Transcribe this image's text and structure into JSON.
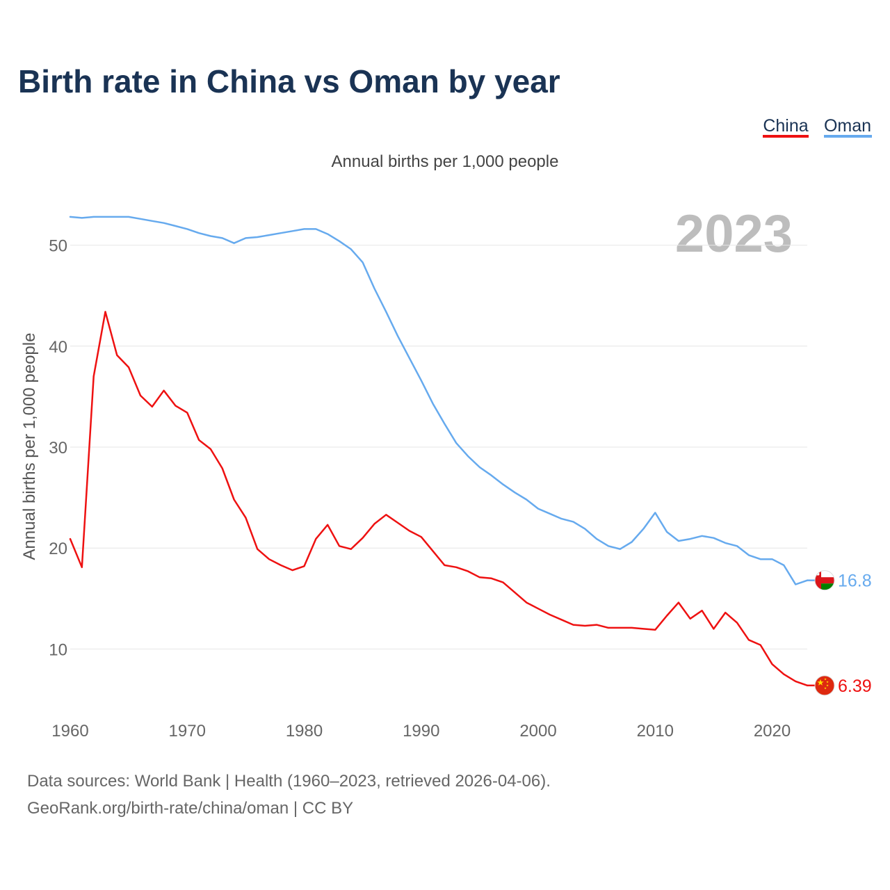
{
  "title": "Birth rate in China vs Oman by year",
  "subtitle": "Annual births per 1,000 people",
  "watermark_year": "2023",
  "footer": {
    "line1": "Data sources: World Bank | Health (1960–2023, retrieved 2026-04-06).",
    "line2": "GeoRank.org/birth-rate/china/oman | CC BY"
  },
  "legend": [
    {
      "name": "China",
      "color": "#ee1111"
    },
    {
      "name": "Oman",
      "color": "#66aaee"
    }
  ],
  "chart_data": {
    "type": "line",
    "title": "Birth rate in China vs Oman by year",
    "xlabel": "",
    "ylabel": "Annual births per 1,000 people",
    "xlim": [
      1960,
      2023
    ],
    "ylim": [
      5,
      55
    ],
    "yticks": [
      10,
      20,
      30,
      40,
      50
    ],
    "xticks": [
      1960,
      1970,
      1980,
      1990,
      2000,
      2010,
      2020
    ],
    "grid": true,
    "legend_position": "top-right",
    "x": [
      1960,
      1961,
      1962,
      1963,
      1964,
      1965,
      1966,
      1967,
      1968,
      1969,
      1970,
      1971,
      1972,
      1973,
      1974,
      1975,
      1976,
      1977,
      1978,
      1979,
      1980,
      1981,
      1982,
      1983,
      1984,
      1985,
      1986,
      1987,
      1988,
      1989,
      1990,
      1991,
      1992,
      1993,
      1994,
      1995,
      1996,
      1997,
      1998,
      1999,
      2000,
      2001,
      2002,
      2003,
      2004,
      2005,
      2006,
      2007,
      2008,
      2009,
      2010,
      2011,
      2012,
      2013,
      2014,
      2015,
      2016,
      2017,
      2018,
      2019,
      2020,
      2021,
      2022,
      2023
    ],
    "series": [
      {
        "name": "China",
        "color": "#ee1111",
        "end_label": "6.39",
        "flag": "china-flag-icon",
        "values": [
          20.9,
          18.1,
          37.0,
          43.4,
          39.1,
          37.9,
          35.1,
          34.0,
          35.6,
          34.1,
          33.4,
          30.7,
          29.8,
          27.9,
          24.8,
          23.0,
          19.9,
          18.9,
          18.3,
          17.8,
          18.2,
          20.9,
          22.3,
          20.2,
          19.9,
          21.0,
          22.4,
          23.3,
          22.5,
          21.7,
          21.1,
          19.7,
          18.3,
          18.1,
          17.7,
          17.1,
          17.0,
          16.6,
          15.6,
          14.6,
          14.0,
          13.4,
          12.9,
          12.4,
          12.3,
          12.4,
          12.1,
          12.1,
          12.1,
          12.0,
          11.9,
          13.3,
          14.6,
          13.0,
          13.8,
          12.0,
          13.6,
          12.6,
          10.9,
          10.4,
          8.5,
          7.5,
          6.8,
          6.39
        ]
      },
      {
        "name": "Oman",
        "color": "#66aaee",
        "end_label": "16.8",
        "flag": "oman-flag-icon",
        "values": [
          52.8,
          52.7,
          52.8,
          52.8,
          52.8,
          52.8,
          52.6,
          52.4,
          52.2,
          51.9,
          51.6,
          51.2,
          50.9,
          50.7,
          50.2,
          50.7,
          50.8,
          51.0,
          51.2,
          51.4,
          51.6,
          51.6,
          51.1,
          50.4,
          49.6,
          48.3,
          45.7,
          43.4,
          41.0,
          38.8,
          36.6,
          34.3,
          32.3,
          30.4,
          29.1,
          28.0,
          27.2,
          26.3,
          25.5,
          24.8,
          23.9,
          23.4,
          22.9,
          22.6,
          21.9,
          20.9,
          20.2,
          19.9,
          20.6,
          21.9,
          23.5,
          21.6,
          20.7,
          20.9,
          21.2,
          21.0,
          20.5,
          20.2,
          19.3,
          18.9,
          18.9,
          18.3,
          16.4,
          16.8
        ]
      }
    ]
  }
}
